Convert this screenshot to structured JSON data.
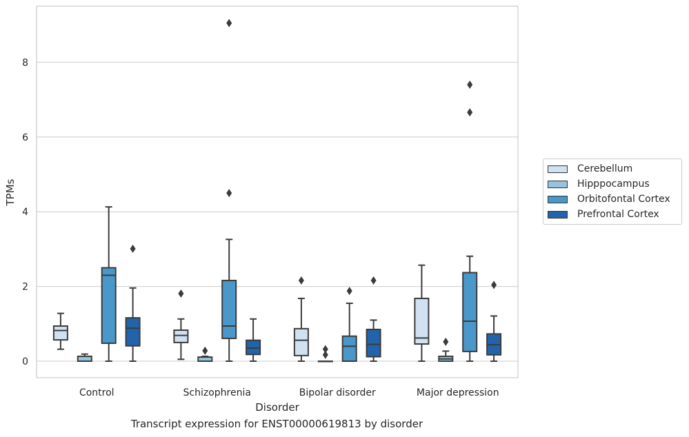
{
  "chart_data": {
    "type": "box",
    "caption": "Transcript expression for ENST00000619813 by disorder",
    "xlabel": "Disorder",
    "ylabel": "TPMs",
    "ylim": [
      -0.45,
      9.6
    ],
    "yticks": [
      0,
      2,
      4,
      6,
      8
    ],
    "grid": true,
    "legend_position": "right",
    "categories": [
      "Control",
      "Schizophrenia",
      "Bipolar disorder",
      "Major depression"
    ],
    "series": [
      {
        "name": "Cerebellum",
        "color": "#d0e1f2",
        "boxes": [
          {
            "whisker_low": 0.32,
            "q1": 0.57,
            "median": 0.82,
            "q3": 0.94,
            "whisker_high": 1.28,
            "outliers": []
          },
          {
            "whisker_low": 0.05,
            "q1": 0.5,
            "median": 0.69,
            "q3": 0.83,
            "whisker_high": 1.13,
            "outliers": [
              1.81
            ]
          },
          {
            "whisker_low": 0.0,
            "q1": 0.15,
            "median": 0.56,
            "q3": 0.87,
            "whisker_high": 1.68,
            "outliers": [
              2.16
            ]
          },
          {
            "whisker_low": 0.0,
            "q1": 0.46,
            "median": 0.62,
            "q3": 1.68,
            "whisker_high": 2.57,
            "outliers": []
          }
        ]
      },
      {
        "name": "Hipppocampus",
        "color": "#94c4df",
        "boxes": [
          {
            "whisker_low": 0.0,
            "q1": 0.0,
            "median": 0.0,
            "q3": 0.13,
            "whisker_high": 0.19,
            "outliers": []
          },
          {
            "whisker_low": 0.0,
            "q1": 0.0,
            "median": 0.0,
            "q3": 0.11,
            "whisker_high": 0.13,
            "outliers": [
              0.28
            ]
          },
          {
            "whisker_low": 0.0,
            "q1": 0.0,
            "median": 0.0,
            "q3": 0.0,
            "whisker_high": 0.0,
            "outliers": [
              0.17,
              0.32
            ]
          },
          {
            "whisker_low": 0.0,
            "q1": 0.0,
            "median": 0.06,
            "q3": 0.13,
            "whisker_high": 0.27,
            "outliers": [
              0.52
            ]
          }
        ]
      },
      {
        "name": "Orbitofontal Cortex",
        "color": "#4a98c9",
        "boxes": [
          {
            "whisker_low": 0.0,
            "q1": 0.48,
            "median": 2.3,
            "q3": 2.5,
            "whisker_high": 4.13,
            "outliers": []
          },
          {
            "whisker_low": 0.0,
            "q1": 0.61,
            "median": 0.94,
            "q3": 2.16,
            "whisker_high": 3.26,
            "outliers": [
              4.5,
              9.05
            ]
          },
          {
            "whisker_low": 0.0,
            "q1": 0.0,
            "median": 0.4,
            "q3": 0.67,
            "whisker_high": 1.55,
            "outliers": [
              1.88
            ]
          },
          {
            "whisker_low": 0.0,
            "q1": 0.26,
            "median": 1.07,
            "q3": 2.37,
            "whisker_high": 2.81,
            "outliers": [
              6.66,
              7.4
            ]
          }
        ]
      },
      {
        "name": "Prefrontal Cortex",
        "color": "#2164ab",
        "boxes": [
          {
            "whisker_low": 0.0,
            "q1": 0.41,
            "median": 0.88,
            "q3": 1.16,
            "whisker_high": 1.96,
            "outliers": [
              3.01
            ]
          },
          {
            "whisker_low": 0.0,
            "q1": 0.18,
            "median": 0.35,
            "q3": 0.56,
            "whisker_high": 1.13,
            "outliers": []
          },
          {
            "whisker_low": 0.0,
            "q1": 0.12,
            "median": 0.45,
            "q3": 0.85,
            "whisker_high": 1.1,
            "outliers": [
              2.16
            ]
          },
          {
            "whisker_low": 0.0,
            "q1": 0.17,
            "median": 0.44,
            "q3": 0.73,
            "whisker_high": 1.21,
            "outliers": [
              2.04
            ]
          }
        ]
      }
    ]
  }
}
